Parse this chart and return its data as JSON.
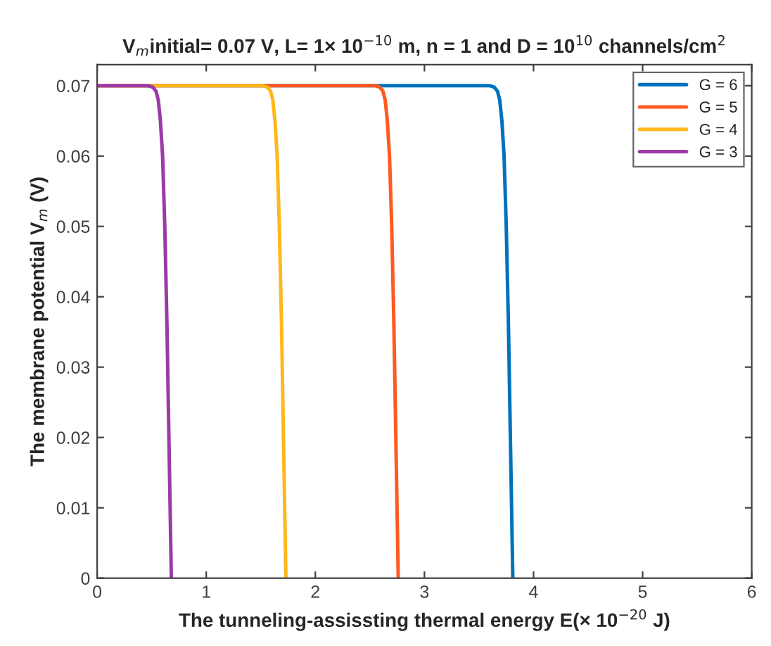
{
  "chart_data": {
    "type": "line",
    "title": "V$_{m}$initial= 0.07 V, L= 1× 10$^{−10}$ m, n = 1 and D = 10$^{10}$ channels/cm$^{2}$",
    "xlabel": "The tunneling-assissting thermal energy E(× 10$^{−20}$ J)",
    "ylabel": "The membrane potential V$_{m}$ (V)",
    "xlim": [
      0,
      6
    ],
    "xticks": [
      0,
      1,
      2,
      3,
      4,
      5,
      6
    ],
    "ylim": [
      0,
      0.073
    ],
    "yticks": [
      0,
      0.01,
      0.02,
      0.03,
      0.04,
      0.05,
      0.06,
      0.07
    ],
    "grid": false,
    "legend": "top right",
    "line_style": "solid",
    "marker": "none",
    "series": [
      {
        "name": "G = 6",
        "color": "#0072bd",
        "x": [
          0,
          3.6,
          3.64,
          3.67,
          3.69,
          3.71,
          3.73,
          3.75,
          3.77,
          3.79,
          3.81
        ],
        "values": [
          0.07,
          0.07,
          0.0698,
          0.0692,
          0.068,
          0.065,
          0.06,
          0.05,
          0.036,
          0.018,
          0
        ]
      },
      {
        "name": "G = 5",
        "color": "#ff5a1f",
        "x": [
          0,
          2.55,
          2.59,
          2.62,
          2.64,
          2.66,
          2.68,
          2.7,
          2.72,
          2.74,
          2.76
        ],
        "values": [
          0.07,
          0.07,
          0.0698,
          0.0692,
          0.068,
          0.065,
          0.06,
          0.05,
          0.036,
          0.018,
          0
        ]
      },
      {
        "name": "G = 4",
        "color": "#ffb81c",
        "x": [
          0,
          1.52,
          1.56,
          1.59,
          1.61,
          1.63,
          1.65,
          1.67,
          1.69,
          1.71,
          1.73
        ],
        "values": [
          0.07,
          0.07,
          0.0698,
          0.0692,
          0.068,
          0.065,
          0.06,
          0.05,
          0.036,
          0.018,
          0
        ]
      },
      {
        "name": "G = 3",
        "color": "#9b3aa8",
        "x": [
          0,
          0.47,
          0.51,
          0.54,
          0.56,
          0.58,
          0.6,
          0.62,
          0.64,
          0.66,
          0.68
        ],
        "values": [
          0.07,
          0.07,
          0.0698,
          0.0692,
          0.068,
          0.065,
          0.06,
          0.05,
          0.036,
          0.018,
          0
        ]
      }
    ]
  }
}
